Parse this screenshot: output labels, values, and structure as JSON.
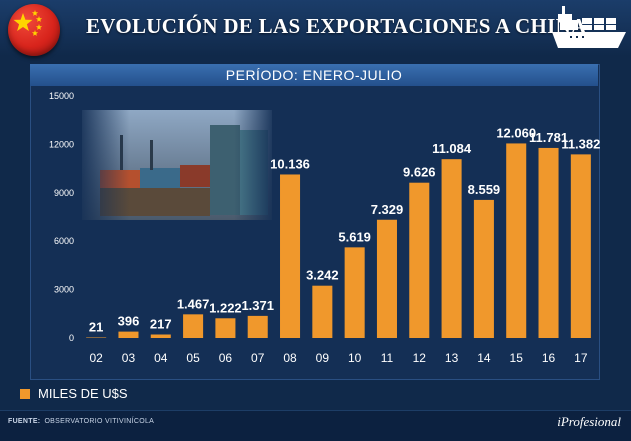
{
  "header": {
    "title": "EVOLUCIÓN DE LAS EXPORTACIONES A CHINA",
    "flag_icon": "china-flag-icon",
    "ship_icon": "cargo-ship-icon"
  },
  "period_label": "PERÍODO: ENERO-JULIO",
  "legend": {
    "label": "MILES DE U$S",
    "color": "#f0982c"
  },
  "footer": {
    "source_label": "FUENTE:",
    "source_text": "OBSERVATORIO VITIVINÍCOLA",
    "brand": "iProfesional"
  },
  "colors": {
    "bar": "#f0982c",
    "background": "#10294a",
    "text": "#ffffff"
  },
  "chart_data": {
    "type": "bar",
    "categories": [
      "02",
      "03",
      "04",
      "05",
      "06",
      "07",
      "08",
      "09",
      "10",
      "11",
      "12",
      "13",
      "14",
      "15",
      "16",
      "17"
    ],
    "values": [
      21,
      396,
      217,
      1467,
      1222,
      1371,
      10136,
      3242,
      5619,
      7329,
      9626,
      11084,
      8559,
      12060,
      11781,
      11382
    ],
    "value_labels": [
      "21",
      "396",
      "217",
      "1.467",
      "1.222",
      "1.371",
      "10.136",
      "3.242",
      "5.619",
      "7.329",
      "9.626",
      "11.084",
      "8.559",
      "12.060",
      "11.781",
      "11.382"
    ],
    "yticks": [
      0,
      3000,
      6000,
      9000,
      12000,
      15000
    ],
    "ylim": [
      0,
      15000
    ],
    "grid": false,
    "legend_position": "bottom-left"
  }
}
